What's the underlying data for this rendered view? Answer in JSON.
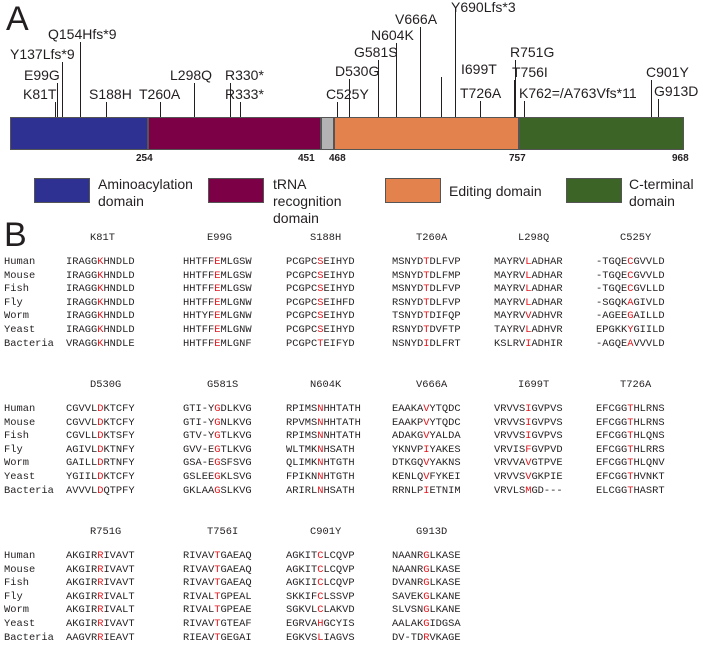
{
  "panel_a": {
    "label": "A",
    "mutations_top": [
      "Y137Lfs*9",
      "Q154Hfs*9",
      "E99G",
      "K81T",
      "S188H",
      "T260A",
      "L298Q",
      "R330*",
      "R333*",
      "C525Y",
      "D530G",
      "G581S",
      "N604K",
      "V666A",
      "Y690Lfs*3",
      "I699T",
      "T726A",
      "R751G",
      "T756I",
      "K762=/A763Vfs*11",
      "C901Y",
      "G913D"
    ],
    "positions": [
      "254",
      "451",
      "468",
      "757",
      "968"
    ],
    "domains": [
      {
        "name": "Aminoacylation domain",
        "color": "#2e3192"
      },
      {
        "name": "tRNA recognition domain",
        "color": "#7b0046"
      },
      {
        "name": "Editing domain",
        "color": "#e3824d"
      },
      {
        "name": "C-terminal domain",
        "color": "#3d6427"
      }
    ],
    "linker_color": "#b3b3b3"
  },
  "panel_b": {
    "label": "B",
    "species": [
      "Human",
      "Mouse",
      "Fish",
      "Fly",
      "Worm",
      "Yeast",
      "Bacteria"
    ],
    "blocks": [
      {
        "title": "K81T",
        "hl": 5,
        "seqs": [
          "IRAGGKHNDLD",
          "IRAGGKHNDLD",
          "IRAGGKHNDLD",
          "IRAGGKHNDLD",
          "IRAGGKHNDLD",
          "IRAGGKHNDLD",
          "VRAGGKHNDLE"
        ]
      },
      {
        "title": "E99G",
        "hl": 5,
        "seqs": [
          "HHTFFEMLGSW",
          "HHTFFEMLGSW",
          "HHTFFEMLGSW",
          "HHTFFEMLGNW",
          "HHTYFEMLGNW",
          "HHTFFEMLGNW",
          "HHTFFEMLGNF"
        ]
      },
      {
        "title": "S188H",
        "hl": 5,
        "seqs": [
          "PCGPCSEIHYD",
          "PCGPCSEIHYD",
          "PCGPCSEIHYD",
          "PCGPCSEIHFD",
          "PCGPCSEIHYD",
          "PCGPCSEIHYD",
          "PCGPCTEIFYD"
        ]
      },
      {
        "title": "T260A",
        "hl": 5,
        "seqs": [
          "MSNYDTDLFVP",
          "MSNYDTDLFMP",
          "MSNYDTDLFVP",
          "RSNYDTDLFVP",
          "TSNYDTDIFQP",
          "RSNYDTDVFTP",
          "NSNYDIDLFRT"
        ]
      },
      {
        "title": "L298Q",
        "hl": 5,
        "seqs": [
          "MAYRVLADHAR",
          "MAYRVLADHAR",
          "MAYRVLADHAR",
          "MAYRVLADHAR",
          "MAYRVVADHVR",
          "TAYRVLADHVR",
          "KSLRVIADHIR"
        ]
      },
      {
        "title": "C525Y",
        "hl": 5,
        "seqs": [
          "-TGQECGVVLD",
          "-TGQECGVVLD",
          "-TGQECGVLLD",
          "-SGQKAGIVLD",
          "-AGEEGAILLD",
          "EPGKKYGIILD",
          "-AGQEAVVVLD"
        ]
      },
      {
        "title": "D530G",
        "hl": 5,
        "seqs": [
          "CGVVLDKTCFY",
          "CGVVLDKTCFY",
          "CGVLLDKTSFY",
          "AGIVLDKTNFY",
          "GAILLDRTNFY",
          "YGIILDKTCFY",
          "AVVVLDQTPFY"
        ]
      },
      {
        "title": "G581S",
        "hl": 5,
        "seqs": [
          "GTI-YGDLKVG",
          "GTI-YGNLKVG",
          "GTV-YGTLKVG",
          "GVV-EGTLKVG",
          "GSA-EGSFSVG",
          "GSLEEGKLSVG",
          "GKLAAGSLKVG"
        ]
      },
      {
        "title": "N604K",
        "hl": 5,
        "seqs": [
          "RPIMSNHHTATH",
          "RPVMSNHHTATH",
          "RPIMSNNHTATH",
          "WLTMKNHSATH",
          "QLIMKNHTGTH",
          "FPIKNNHTGTH",
          "ARIRLNHSATH"
        ]
      },
      {
        "title": "V666A",
        "hl": 5,
        "seqs": [
          "EAAKAVYTQDC",
          "EAAKPVYTQDC",
          "ADAKGVYALDA",
          "YKNVPIYAKES",
          "DTKGQVYAKNS",
          "KENLQVFYKEI",
          "RRNLPIETNIM"
        ]
      },
      {
        "title": "I699T",
        "hl": 5,
        "seqs": [
          "VRVVSIGVPVS",
          "VRVVSIGVPVS",
          "VRVVSIGVPVS",
          "VRVISFGVPVD",
          "VRVVAVGTPVE",
          "VRVVSVGKPIE",
          "VRVLSMGD---"
        ]
      },
      {
        "title": "T726A",
        "hl": 5,
        "seqs": [
          "EFCGGTHLRNS",
          "EFCGGTHLRNS",
          "EFCGGTHLQNS",
          "EFCGGTHLRRS",
          "EFCGGTHLQNV",
          "EFCGGTHVNKT",
          "ELCGGTHASRT"
        ]
      },
      {
        "title": "R751G",
        "hl": 5,
        "seqs": [
          "AKGIRRIVAVT",
          "AKGIRRIVAVT",
          "AKGIRRIVAVT",
          "AKGIRRIVALT",
          "AKGIRRIVALT",
          "AKGIRRIVAVT",
          "AAGVRRIEAVT"
        ]
      },
      {
        "title": "T756I",
        "hl": 5,
        "seqs": [
          "RIVAVTGAEAQ",
          "RIVAVTGAEAQ",
          "RIVAVTGAEAQ",
          "RIVALTGPEAL",
          "RIVALTGPEAE",
          "RIVAVTGTEAF",
          "RIEAVTGEGAI"
        ]
      },
      {
        "title": "C901Y",
        "hl": 5,
        "seqs": [
          "AGKITCLCQVP",
          "AGKITCLCQVP",
          "AGKIICLCQVP",
          "SKKIFCLSSVP",
          "SGKVLCLAKVD",
          "EGRVAHGCYIS",
          "EGKVSLIAGVS"
        ]
      },
      {
        "title": "G913D",
        "hl": 5,
        "seqs": [
          "NAANRGLKASE",
          "NAANRGLKASE",
          "DVANRGLKASE",
          "SAVEKGLKANE",
          "SLVSNGLKANE",
          "AALAKGIDGSA",
          "DV-TDRVKAGE"
        ]
      }
    ]
  }
}
